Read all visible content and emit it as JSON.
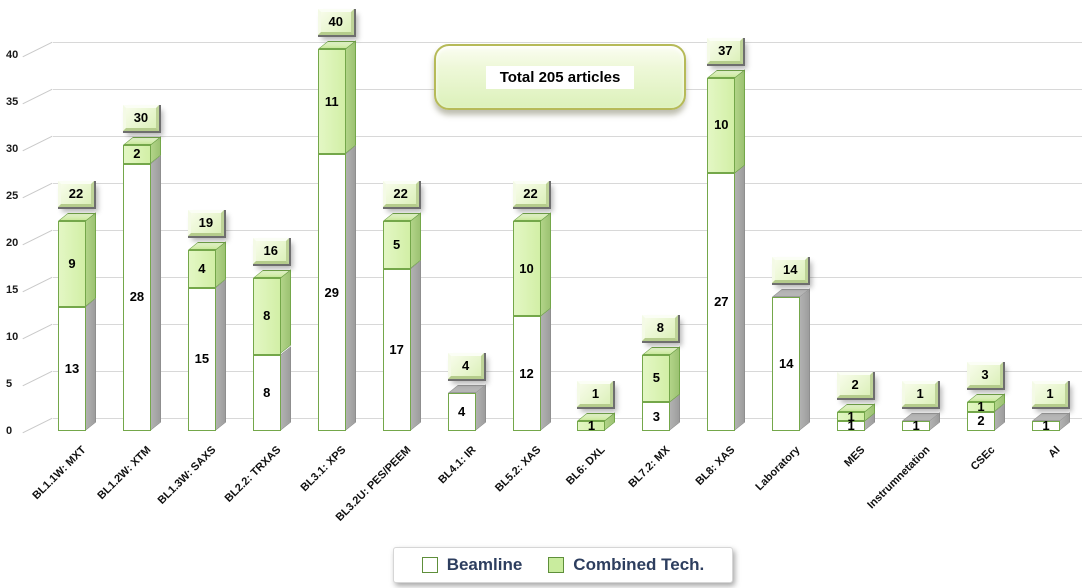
{
  "chart_data": {
    "type": "bar",
    "stacked": true,
    "projection": "3d",
    "title": "",
    "annotation": "Total 205 articles",
    "xlabel": "",
    "ylabel": "",
    "ylim": [
      0,
      40
    ],
    "ytick_step": 5,
    "yticks": [
      0,
      5,
      10,
      15,
      20,
      25,
      30,
      35,
      40
    ],
    "grid": true,
    "legend_position": "bottom",
    "categories": [
      "BL1.1W: MXT",
      "BL1.2W: XTM",
      "BL1.3W: SAXS",
      "BL2.2: TRXAS",
      "BL3.1: XPS",
      "BL3.2U: PES/PEEM",
      "BL4.1: IR",
      "BL5.2: XAS",
      "BL6: DXL",
      "BL7.2: MX",
      "BL8: XAS",
      "Laboratory",
      "MES",
      "Instrumnetation",
      "CSEc",
      "AI"
    ],
    "series": [
      {
        "name": "Beamline",
        "color": "#ffffff",
        "values": [
          13,
          28,
          15,
          8,
          29,
          17,
          4,
          12,
          0,
          3,
          27,
          14,
          1,
          1,
          2,
          1
        ]
      },
      {
        "name": "Combined Tech.",
        "color": "#d6f1ae",
        "values": [
          9,
          2,
          4,
          8,
          11,
          5,
          0,
          10,
          1,
          5,
          10,
          0,
          1,
          0,
          1,
          0
        ]
      }
    ],
    "totals": [
      22,
      30,
      19,
      16,
      40,
      22,
      4,
      22,
      1,
      8,
      37,
      14,
      2,
      1,
      3,
      1
    ]
  },
  "legend": {
    "items": [
      {
        "label": "Beamline",
        "swatch": "#ffffff"
      },
      {
        "label": "Combined Tech.",
        "swatch": "#c9ec9e"
      }
    ]
  },
  "colors": {
    "bar_border": "#74a74a",
    "combined_fill": "#d6f1ae",
    "beamline_fill": "#ffffff",
    "side_gray": "#a8a8a8",
    "side_green": "#a3c97a",
    "gridline": "#d8d8d8",
    "legend_text": "#2d3e5f",
    "badge_fill": "#e9f6d0",
    "annotation_border": "#b6ba58"
  }
}
